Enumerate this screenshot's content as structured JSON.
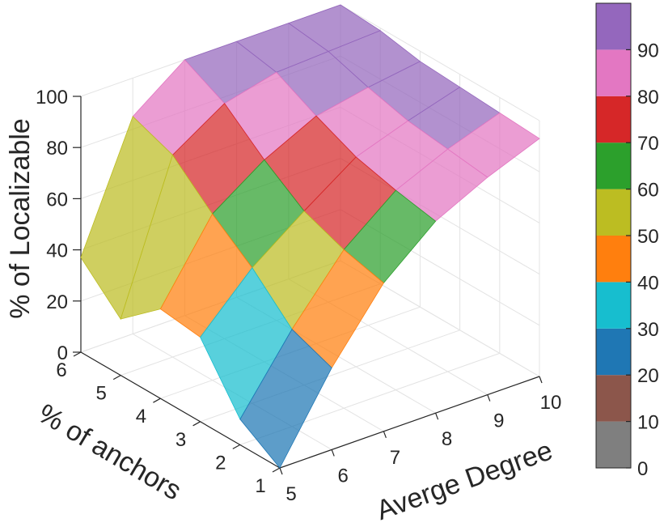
{
  "chart_data": {
    "type": "surface",
    "x_label": "Averge Degree",
    "y_label": "% of anchors",
    "z_label": "% of Localizable",
    "x": [
      5,
      6,
      7,
      8,
      9,
      10
    ],
    "y": [
      1,
      2,
      3,
      4,
      5,
      6
    ],
    "x_ticks": [
      "5",
      "6",
      "7",
      "8",
      "9",
      "10"
    ],
    "y_ticks": [
      "1",
      "2",
      "3",
      "4",
      "5",
      "6"
    ],
    "z_ticks": [
      "0",
      "20",
      "40",
      "60",
      "80",
      "100"
    ],
    "zlim": [
      0,
      100
    ],
    "z_by_anchor": [
      [
        0,
        32,
        58,
        75,
        85,
        93
      ],
      [
        10,
        38,
        62,
        78,
        87,
        94
      ],
      [
        33,
        53,
        68,
        82,
        89,
        95
      ],
      [
        35,
        65,
        79,
        89,
        93,
        96
      ],
      [
        22,
        79,
        92,
        97,
        98,
        99
      ],
      [
        37,
        85,
        100,
        100,
        100,
        100
      ]
    ],
    "grid": true,
    "colormap": [
      {
        "from": 0,
        "to": 10,
        "color": "#7f7f7f"
      },
      {
        "from": 10,
        "to": 20,
        "color": "#8c564b"
      },
      {
        "from": 20,
        "to": 30,
        "color": "#1f77b4"
      },
      {
        "from": 30,
        "to": 40,
        "color": "#17becf"
      },
      {
        "from": 40,
        "to": 50,
        "color": "#ff7f0e"
      },
      {
        "from": 50,
        "to": 60,
        "color": "#bcbd22"
      },
      {
        "from": 60,
        "to": 70,
        "color": "#2ca02c"
      },
      {
        "from": 70,
        "to": 80,
        "color": "#d62728"
      },
      {
        "from": 80,
        "to": 90,
        "color": "#e377c2"
      },
      {
        "from": 90,
        "to": 100,
        "color": "#9467bd"
      }
    ],
    "colorbar_ticks": [
      "0",
      "10",
      "20",
      "30",
      "40",
      "50",
      "60",
      "70",
      "80",
      "90"
    ],
    "colorbar_position": "right"
  }
}
